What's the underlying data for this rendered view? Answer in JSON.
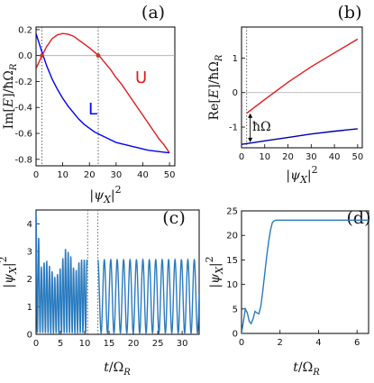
{
  "chart_data": [
    {
      "panel": "(a)",
      "type": "line",
      "ylabel": "Im[E]/ħΩ_R",
      "xlabel": "|ψ_X|²",
      "xlim": [
        0,
        52
      ],
      "ylim": [
        -0.85,
        0.22
      ],
      "xticks": [
        0,
        10,
        20,
        30,
        40,
        50
      ],
      "yticks": [
        0.2,
        0.0,
        -0.2,
        -0.4,
        -0.6,
        -0.8
      ],
      "ytick_labels": [
        "0.2",
        "0.0",
        "-0.2",
        "-0.4",
        "-0.6",
        "-0.8"
      ],
      "hline": 0,
      "vlines": [
        2.2,
        23.3
      ],
      "markers": [
        {
          "x": 2.2,
          "y": 0.0
        },
        {
          "x": 23.3,
          "y": 0.0
        }
      ],
      "series": [
        {
          "name": "U",
          "color": "#e41a1c",
          "x": [
            0,
            2,
            4,
            6,
            8,
            10,
            12,
            14,
            16,
            18,
            20,
            22,
            24,
            26,
            28,
            30,
            32,
            34,
            36,
            38,
            40,
            42,
            44,
            46,
            48,
            50
          ],
          "y": [
            -0.1,
            -0.01,
            0.07,
            0.13,
            0.16,
            0.17,
            0.165,
            0.15,
            0.12,
            0.09,
            0.06,
            0.025,
            -0.01,
            -0.06,
            -0.11,
            -0.17,
            -0.22,
            -0.28,
            -0.34,
            -0.4,
            -0.46,
            -0.52,
            -0.58,
            -0.64,
            -0.69,
            -0.75
          ]
        },
        {
          "name": "L",
          "color": "#0000ff",
          "x": [
            0,
            2,
            4,
            6,
            8,
            10,
            12,
            14,
            16,
            18,
            20,
            22,
            24,
            26,
            28,
            30,
            32,
            34,
            36,
            38,
            40,
            42,
            44,
            46,
            48,
            50
          ],
          "y": [
            0.17,
            0.04,
            -0.08,
            -0.18,
            -0.26,
            -0.33,
            -0.39,
            -0.44,
            -0.49,
            -0.53,
            -0.56,
            -0.59,
            -0.61,
            -0.63,
            -0.65,
            -0.67,
            -0.68,
            -0.69,
            -0.7,
            -0.71,
            -0.72,
            -0.73,
            -0.735,
            -0.74,
            -0.745,
            -0.75
          ]
        }
      ]
    },
    {
      "panel": "(b)",
      "type": "line",
      "ylabel": "Re[E]/ħΩ_R",
      "xlabel": "|ψ_X|²",
      "xlim": [
        0,
        52
      ],
      "ylim": [
        -1.6,
        1.9
      ],
      "xticks": [
        0,
        10,
        20,
        30,
        40,
        50
      ],
      "yticks": [
        1,
        0,
        -1
      ],
      "ytick_labels": [
        "1",
        "0",
        "-1"
      ],
      "hline": 0,
      "vlines": [
        2.2
      ],
      "annotation": "ħΩ",
      "series": [
        {
          "name": "upper",
          "color": "#e41a1c",
          "x": [
            2.2,
            10,
            20,
            30,
            40,
            50
          ],
          "y": [
            -0.6,
            -0.2,
            0.3,
            0.75,
            1.15,
            1.55
          ]
        },
        {
          "name": "lower",
          "color": "#0000aa",
          "x": [
            0,
            5,
            10,
            20,
            30,
            40,
            50
          ],
          "y": [
            -1.5,
            -1.45,
            -1.4,
            -1.3,
            -1.2,
            -1.12,
            -1.05
          ]
        }
      ]
    },
    {
      "panel": "(c)",
      "type": "line",
      "ylabel": "|ψ_X|²",
      "xlabel": "t/Ω_R",
      "xlim": [
        0,
        33.5
      ],
      "ylim": [
        0,
        4.5
      ],
      "xticks": [
        0,
        5,
        10,
        15,
        20,
        25,
        30
      ],
      "yticks": [
        0,
        1,
        2,
        3,
        4
      ],
      "vlines": [
        10.6,
        12.7
      ],
      "series": [
        {
          "color": "#2a7bbf",
          "segments": [
            {
              "t_start": 0,
              "t_end": 10.5,
              "envelope_t": [
                0,
                0.5,
                1,
                2,
                3,
                4,
                5,
                6,
                7,
                8,
                9,
                10,
                10.5
              ],
              "envelope_max": [
                4.4,
                3.6,
                2.4,
                2.7,
                2.4,
                2.0,
                2.4,
                3.1,
                2.9,
                2.2,
                2.7,
                2.7,
                2.7
              ],
              "min": 0.05,
              "period": 0.55
            },
            {
              "t_start": 12.7,
              "t_end": 33.5,
              "max": 2.7,
              "min": 0.05,
              "period": 1.32
            }
          ]
        }
      ]
    },
    {
      "panel": "(d)",
      "type": "line",
      "ylabel": "|ψ_X|²",
      "xlabel": "t/Ω_R",
      "xlim": [
        0,
        6.6
      ],
      "ylim": [
        0,
        25
      ],
      "xticks": [
        0,
        2,
        4,
        6
      ],
      "yticks": [
        0,
        5,
        10,
        15,
        20,
        25
      ],
      "series": [
        {
          "color": "#2a7bbf",
          "x": [
            0,
            0.1,
            0.2,
            0.3,
            0.4,
            0.5,
            0.6,
            0.7,
            0.8,
            0.9,
            1.0,
            1.1,
            1.2,
            1.3,
            1.4,
            1.5,
            1.6,
            1.7,
            1.8,
            2.0,
            2.5,
            3,
            4,
            5,
            6,
            6.6
          ],
          "y": [
            0,
            2.5,
            5,
            4.2,
            2.5,
            2.0,
            3.0,
            4.5,
            4.2,
            4.0,
            5.5,
            8.5,
            12,
            15.5,
            18.5,
            21,
            22.6,
            23,
            23.1,
            23.1,
            23.1,
            23.1,
            23.1,
            23.1,
            23.1,
            23.1
          ]
        }
      ]
    }
  ]
}
